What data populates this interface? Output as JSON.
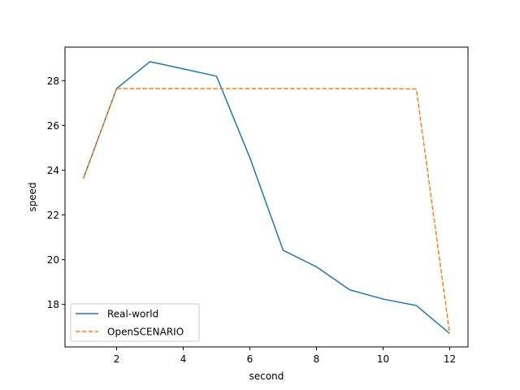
{
  "chart_data": {
    "type": "line",
    "title": "",
    "xlabel": "second",
    "ylabel": "speed",
    "xlim": [
      0.45,
      12.55
    ],
    "ylim": [
      16.1,
      29.5
    ],
    "xticks": [
      2,
      4,
      6,
      8,
      10,
      12
    ],
    "yticks": [
      18,
      20,
      22,
      24,
      26,
      28
    ],
    "grid": false,
    "legend_position": "lower-left",
    "series": [
      {
        "name": "Real-world",
        "color": "#1f77b4",
        "style": "solid",
        "x": [
          1,
          2,
          3,
          4,
          5,
          6,
          7,
          8,
          9,
          10,
          11,
          12
        ],
        "y": [
          23.62,
          27.65,
          28.85,
          28.53,
          28.2,
          24.56,
          20.42,
          19.68,
          18.65,
          18.24,
          17.95,
          16.7
        ]
      },
      {
        "name": "OpenSCENARIO",
        "color": "#ff7f0e",
        "style": "dashed",
        "x": [
          1,
          2,
          3,
          4,
          5,
          6,
          7,
          8,
          9,
          10,
          11,
          12
        ],
        "y": [
          23.62,
          27.65,
          27.65,
          27.65,
          27.65,
          27.65,
          27.65,
          27.65,
          27.65,
          27.65,
          27.63,
          16.7
        ]
      }
    ]
  }
}
